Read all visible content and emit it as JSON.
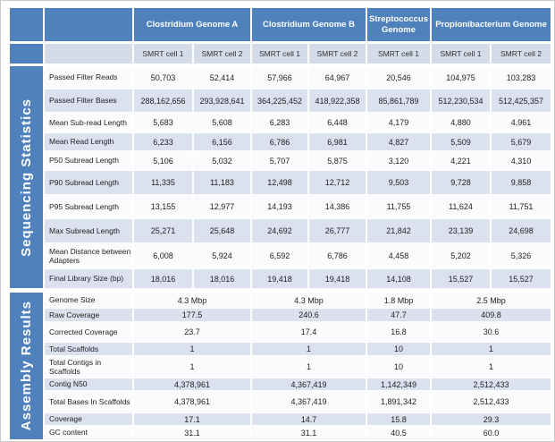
{
  "title": "Sequencing Statistics and Assembly Results Table",
  "colors": {
    "header_blue": "#4f81bd",
    "subheader_bg": "#d5dce9",
    "row_bg": "#fbfbfd",
    "row_alt_bg": "#dbe1ef",
    "header_text": "#ffffff",
    "body_text": "#222222"
  },
  "chart_data": {
    "type": "table",
    "genome_groups": [
      {
        "label": "Clostridium Genome A",
        "smrt_cells": [
          "SMRT cell 1",
          "SMRT cell 2"
        ]
      },
      {
        "label": "Clostridium Genome B",
        "smrt_cells": [
          "SMRT cell 1",
          "SMRT cell 2"
        ]
      },
      {
        "label": "Streptococcus Genome",
        "smrt_cells": [
          "SMRT cell 1"
        ]
      },
      {
        "label": "Propionibacterium Genome",
        "smrt_cells": [
          "SMRT cell 1",
          "SMRT cell 2"
        ]
      }
    ],
    "sections": [
      {
        "title": "Sequencing Statistics",
        "merged_by_genome": false,
        "rows": [
          {
            "label": "Passed Filter Reads",
            "values": [
              "50,703",
              "52,414",
              "57,966",
              "64,967",
              "20,546",
              "104,975",
              "103,283"
            ]
          },
          {
            "label": "Passed Filter Bases",
            "values": [
              "288,162,656",
              "293,928,641",
              "364,225,452",
              "418,922,358",
              "85,861,789",
              "512,230,534",
              "512,425,357"
            ]
          },
          {
            "label": "Mean Sub-read Length",
            "values": [
              "5,683",
              "5,608",
              "6,283",
              "6,448",
              "4,179",
              "4,880",
              "4,961"
            ]
          },
          {
            "label": "Mean Read Length",
            "values": [
              "6,233",
              "6,156",
              "6,786",
              "6,981",
              "4,827",
              "5,509",
              "5,679"
            ]
          },
          {
            "label": "P50 Subread Length",
            "values": [
              "5,106",
              "5,032",
              "5,707",
              "5,875",
              "3,120",
              "4,221",
              "4,310"
            ]
          },
          {
            "label": "P90 Subread Length",
            "values": [
              "11,335",
              "11,183",
              "12,498",
              "12,712",
              "9,503",
              "9,728",
              "9,858"
            ]
          },
          {
            "label": "P95 Subread Length",
            "values": [
              "13,155",
              "12,977",
              "14,193",
              "14,386",
              "11,755",
              "11,624",
              "11,751"
            ]
          },
          {
            "label": "Max Subread Length",
            "values": [
              "25,271",
              "25,648",
              "24,692",
              "26,777",
              "21,842",
              "23,139",
              "24,698"
            ]
          },
          {
            "label": "Mean Distance between Adapters",
            "values": [
              "6,008",
              "5,924",
              "6,592",
              "6,786",
              "4,458",
              "5,202",
              "5,326"
            ]
          },
          {
            "label": "Final Library Size (bp)",
            "values": [
              "18,016",
              "18,016",
              "19,418",
              "19,418",
              "14,108",
              "15,527",
              "15,527"
            ]
          }
        ]
      },
      {
        "title": "Assembly Results",
        "merged_by_genome": true,
        "rows": [
          {
            "label": "Genome Size",
            "values": [
              "4.3 Mbp",
              "4.3 Mbp",
              "1.8 Mbp",
              "2.5 Mbp"
            ]
          },
          {
            "label": "Raw Coverage",
            "values": [
              "177.5",
              "240.6",
              "47.7",
              "409.8"
            ]
          },
          {
            "label": "Corrected Coverage",
            "values": [
              "23.7",
              "17.4",
              "16.8",
              "30.6"
            ]
          },
          {
            "label": "Total Scaffolds",
            "values": [
              "1",
              "1",
              "10",
              "1"
            ]
          },
          {
            "label": "Total Contigs in Scaffolds",
            "values": [
              "1",
              "1",
              "10",
              "1"
            ]
          },
          {
            "label": "Contig N50",
            "values": [
              "4,378,961",
              "4,367,419",
              "1,142,349",
              "2,512,433"
            ]
          },
          {
            "label": "Total Bases In Scaffolds",
            "values": [
              "4,378,961",
              "4,367,419",
              "1,891,342",
              "2,512,433"
            ]
          },
          {
            "label": "Coverage",
            "values": [
              "17.1",
              "14.7",
              "15.8",
              "29.3"
            ]
          },
          {
            "label": "GC content",
            "values": [
              "31.1",
              "31.1",
              "40.5",
              "60.0"
            ]
          }
        ]
      }
    ]
  }
}
